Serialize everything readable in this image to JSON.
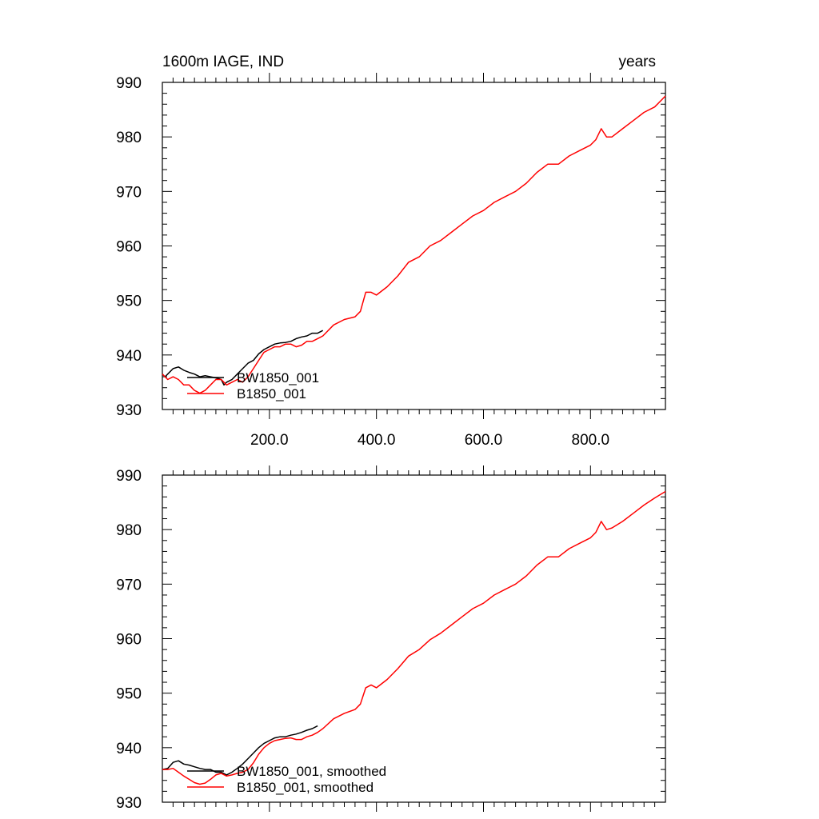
{
  "figure": {
    "title_left": "1600m IAGE, IND",
    "title_right": "years"
  },
  "chart_data": [
    {
      "type": "line",
      "title": "1600m IAGE, IND",
      "units": "years",
      "xlabel": "",
      "ylabel": "",
      "xlim": [
        0,
        940
      ],
      "ylim": [
        930,
        990
      ],
      "y_ticks": [
        930,
        940,
        950,
        960,
        970,
        980,
        990
      ],
      "x_ticks": [
        200,
        400,
        600,
        800
      ],
      "x_tick_labels": [
        "200.0",
        "400.0",
        "600.0",
        "800.0"
      ],
      "legend_position": "bottom-left",
      "series": [
        {
          "name": "BW1850_001",
          "color": "#000000",
          "x": [
            0,
            5,
            10,
            20,
            30,
            40,
            50,
            60,
            70,
            80,
            90,
            100,
            110,
            115,
            120,
            130,
            140,
            150,
            160,
            170,
            180,
            190,
            200,
            210,
            220,
            230,
            240,
            250,
            260,
            270,
            280,
            290,
            300
          ],
          "y": [
            936.5,
            936.0,
            936.5,
            937.5,
            937.8,
            937.2,
            936.8,
            936.5,
            936.0,
            936.2,
            936.0,
            935.8,
            935.5,
            934.5,
            935.0,
            935.5,
            936.5,
            937.5,
            938.5,
            939.0,
            940.2,
            941.0,
            941.5,
            942.0,
            942.2,
            942.3,
            942.5,
            943.0,
            943.3,
            943.5,
            944.0,
            944.0,
            944.5
          ]
        },
        {
          "name": "B1850_001",
          "color": "#ff0000",
          "x": [
            0,
            10,
            20,
            30,
            40,
            50,
            60,
            70,
            80,
            90,
            100,
            110,
            120,
            130,
            140,
            150,
            160,
            170,
            180,
            190,
            200,
            210,
            220,
            230,
            240,
            250,
            260,
            270,
            280,
            290,
            300,
            320,
            340,
            360,
            370,
            380,
            390,
            400,
            420,
            440,
            460,
            480,
            500,
            520,
            540,
            560,
            580,
            600,
            620,
            640,
            660,
            680,
            700,
            720,
            740,
            760,
            780,
            800,
            810,
            820,
            830,
            840,
            860,
            880,
            900,
            920,
            940
          ],
          "y": [
            936.5,
            935.5,
            936.0,
            935.5,
            934.5,
            934.5,
            933.5,
            933.0,
            933.5,
            934.5,
            935.5,
            935.5,
            934.5,
            935.0,
            935.5,
            935.0,
            936.0,
            937.5,
            939.0,
            940.5,
            941.0,
            941.5,
            941.5,
            942.0,
            942.0,
            941.5,
            941.8,
            942.5,
            942.5,
            943.0,
            943.5,
            945.5,
            946.5,
            947.0,
            948.0,
            951.5,
            951.5,
            951.0,
            952.5,
            954.5,
            957.0,
            958.0,
            960.0,
            961.0,
            962.5,
            964.0,
            965.5,
            966.5,
            968.0,
            969.0,
            970.0,
            971.5,
            973.5,
            975.0,
            975.0,
            976.5,
            977.5,
            978.5,
            979.5,
            981.5,
            980.0,
            980.0,
            981.5,
            983.0,
            984.5,
            985.5,
            987.5
          ]
        }
      ]
    },
    {
      "type": "line",
      "title": "",
      "units": "",
      "xlabel": "",
      "ylabel": "",
      "xlim": [
        0,
        940
      ],
      "ylim": [
        930,
        990
      ],
      "y_ticks": [
        930,
        940,
        950,
        960,
        970,
        980,
        990
      ],
      "x_ticks": [
        200,
        400,
        600,
        800
      ],
      "x_tick_labels": [],
      "legend_position": "bottom-left",
      "series": [
        {
          "name": "BW1850_001, smoothed",
          "color": "#000000",
          "x": [
            0,
            10,
            20,
            30,
            40,
            50,
            60,
            70,
            80,
            90,
            100,
            110,
            120,
            130,
            140,
            150,
            160,
            170,
            180,
            190,
            200,
            210,
            220,
            230,
            240,
            250,
            260,
            270,
            280,
            290
          ],
          "y": [
            936.0,
            936.2,
            937.3,
            937.6,
            937.0,
            936.8,
            936.5,
            936.2,
            936.0,
            936.0,
            935.5,
            935.5,
            935.0,
            935.5,
            936.2,
            937.0,
            938.0,
            939.0,
            940.0,
            940.8,
            941.3,
            941.8,
            942.0,
            942.0,
            942.3,
            942.5,
            942.8,
            943.2,
            943.5,
            944.0
          ]
        },
        {
          "name": "B1850_001, smoothed",
          "color": "#ff0000",
          "x": [
            0,
            10,
            20,
            30,
            40,
            50,
            60,
            70,
            80,
            90,
            100,
            110,
            120,
            130,
            140,
            150,
            160,
            170,
            180,
            190,
            200,
            210,
            220,
            230,
            240,
            250,
            260,
            270,
            280,
            290,
            300,
            320,
            340,
            360,
            370,
            380,
            390,
            400,
            420,
            440,
            460,
            480,
            500,
            520,
            540,
            560,
            580,
            600,
            620,
            640,
            660,
            680,
            700,
            720,
            740,
            760,
            780,
            800,
            810,
            820,
            830,
            840,
            860,
            880,
            900,
            920,
            940
          ],
          "y": [
            936.0,
            936.0,
            936.2,
            935.5,
            934.8,
            934.2,
            933.6,
            933.3,
            933.5,
            934.2,
            935.0,
            935.3,
            934.8,
            935.0,
            935.3,
            935.5,
            936.0,
            937.2,
            938.8,
            940.0,
            940.8,
            941.3,
            941.5,
            941.7,
            941.8,
            941.5,
            941.5,
            942.0,
            942.3,
            942.8,
            943.5,
            945.3,
            946.3,
            947.0,
            948.0,
            951.0,
            951.5,
            951.0,
            952.5,
            954.5,
            956.8,
            958.0,
            959.8,
            961.0,
            962.5,
            964.0,
            965.5,
            966.5,
            968.0,
            969.0,
            970.0,
            971.5,
            973.5,
            975.0,
            975.0,
            976.5,
            977.5,
            978.5,
            979.5,
            981.5,
            980.0,
            980.3,
            981.5,
            983.0,
            984.5,
            985.8,
            987.0
          ]
        }
      ]
    }
  ]
}
